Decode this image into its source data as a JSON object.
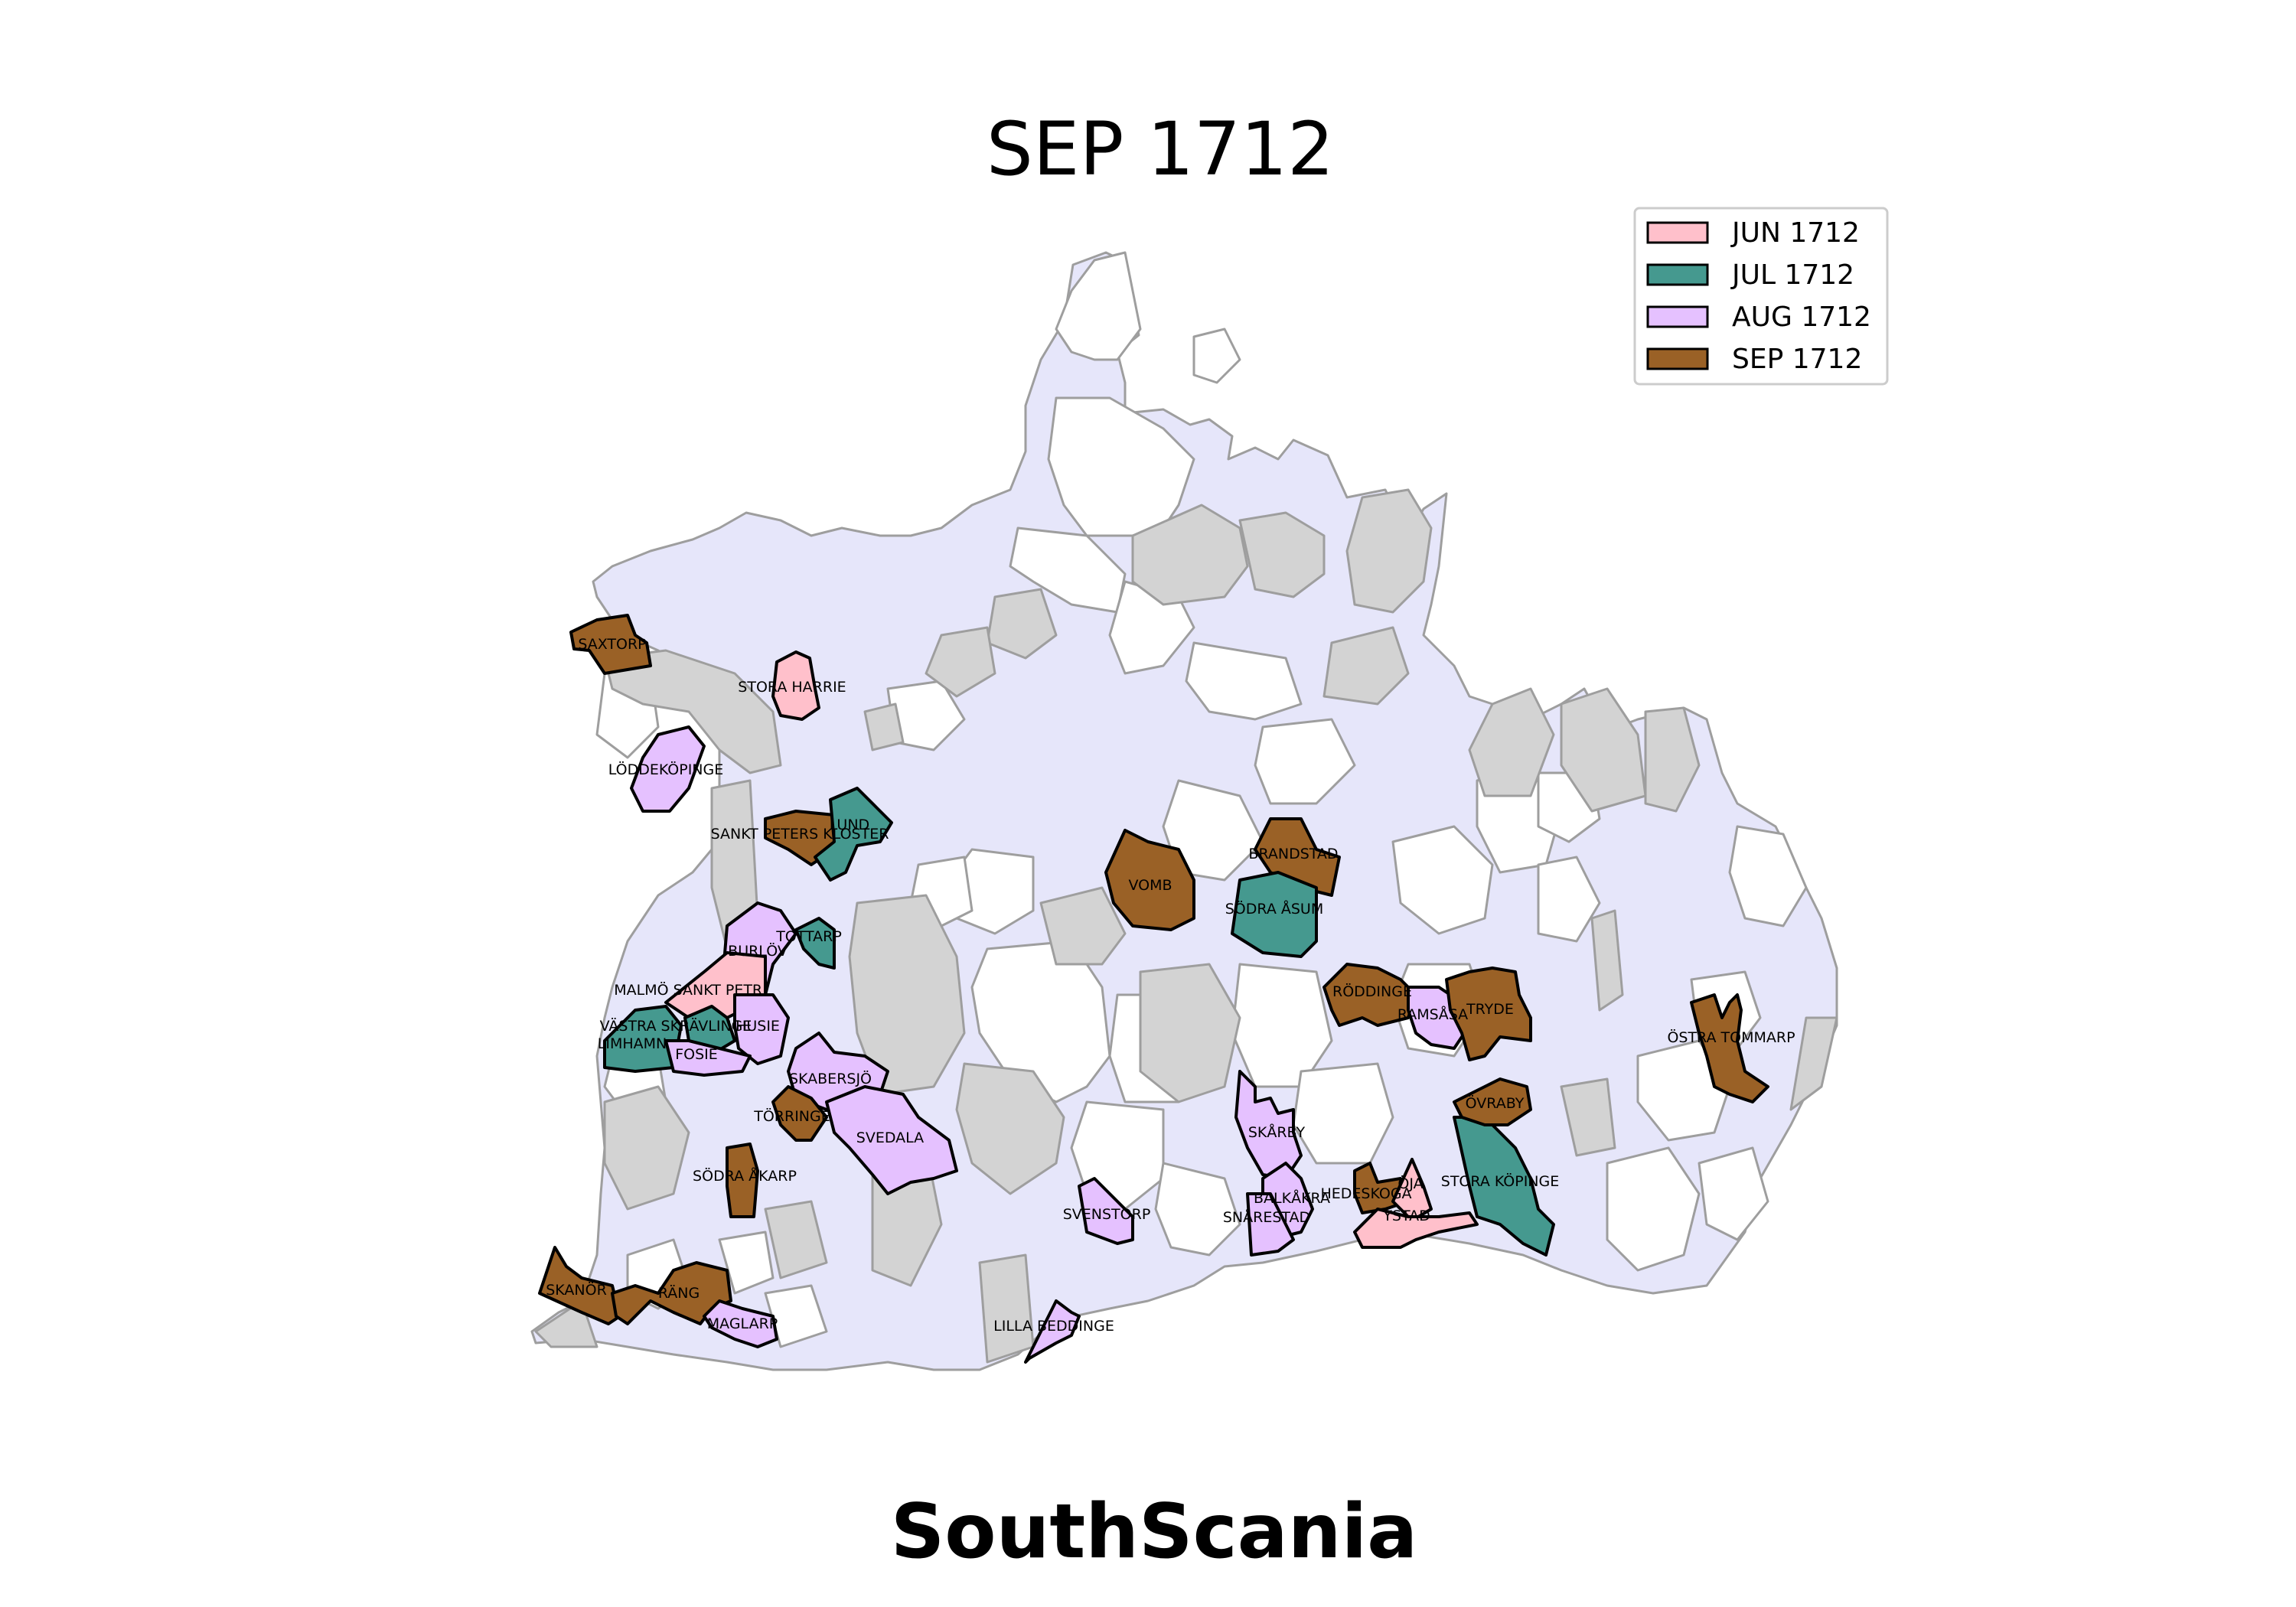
{
  "title": "SEP 1712",
  "footer": "SouthScania",
  "colors": {
    "background_region": "#e6e6fa",
    "unvisited_region": "#ffffff",
    "gray_region": "#d3d3d3",
    "border": "#9e9e9e",
    "highlight_border": "#000000"
  },
  "legend": {
    "position": "top-right",
    "items": [
      {
        "label": "JUN 1712",
        "color": "#ffc0cb"
      },
      {
        "label": "JUL 1712",
        "color": "#45998f"
      },
      {
        "label": "AUG 1712",
        "color": "#e5c1ff"
      },
      {
        "label": "SEP 1712",
        "color": "#9a6126"
      }
    ]
  },
  "parishes": [
    {
      "name": "SAXTORP",
      "period": "SEP 1712"
    },
    {
      "name": "STORA HARRIE",
      "period": "JUN 1712"
    },
    {
      "name": "LÖDDEKÖPINGE",
      "period": "AUG 1712"
    },
    {
      "name": "SANKT PETERS KLOSTER",
      "period": "SEP 1712"
    },
    {
      "name": "LUND",
      "period": "JUL 1712"
    },
    {
      "name": "VOMB",
      "period": "SEP 1712"
    },
    {
      "name": "BRANDSTAD",
      "period": "SEP 1712"
    },
    {
      "name": "SÖDRA ÅSUM",
      "period": "JUL 1712"
    },
    {
      "name": "BURLÖV",
      "period": "AUG 1712"
    },
    {
      "name": "TOTTARP",
      "period": "JUL 1712"
    },
    {
      "name": "MALMÖ SANKT PETRI",
      "period": "JUN 1712"
    },
    {
      "name": "VÄSTRA SKRÄVLINGE",
      "period": "JUL 1712"
    },
    {
      "name": "HUSIE",
      "period": "AUG 1712"
    },
    {
      "name": "LIMHAMN",
      "period": "JUL 1712"
    },
    {
      "name": "FOSIE",
      "period": "AUG 1712"
    },
    {
      "name": "SKABERSJÖ",
      "period": "AUG 1712"
    },
    {
      "name": "TÖRRINGE",
      "period": "SEP 1712"
    },
    {
      "name": "SVEDALA",
      "period": "AUG 1712"
    },
    {
      "name": "SÖDRA ÅKARP",
      "period": "SEP 1712"
    },
    {
      "name": "SKANÖR",
      "period": "SEP 1712"
    },
    {
      "name": "RÄNG",
      "period": "SEP 1712"
    },
    {
      "name": "MAGLARP",
      "period": "AUG 1712"
    },
    {
      "name": "LILLA BEDDINGE",
      "period": "AUG 1712"
    },
    {
      "name": "SVENSTORP",
      "period": "AUG 1712"
    },
    {
      "name": "SKÅRBY",
      "period": "AUG 1712"
    },
    {
      "name": "BALKÅKRA",
      "period": "AUG 1712"
    },
    {
      "name": "SNÅRESTAD",
      "period": "AUG 1712"
    },
    {
      "name": "HEDESKOGA",
      "period": "SEP 1712"
    },
    {
      "name": "ÖJA",
      "period": "JUN 1712"
    },
    {
      "name": "YSTAD",
      "period": "JUN 1712"
    },
    {
      "name": "STORA KÖPINGE",
      "period": "JUL 1712"
    },
    {
      "name": "ÖVRABY",
      "period": "SEP 1712"
    },
    {
      "name": "RÖDDINGE",
      "period": "SEP 1712"
    },
    {
      "name": "RAMSÅSA",
      "period": "AUG 1712"
    },
    {
      "name": "TRYDE",
      "period": "SEP 1712"
    },
    {
      "name": "ÖSTRA TOMMARP",
      "period": "SEP 1712"
    }
  ]
}
